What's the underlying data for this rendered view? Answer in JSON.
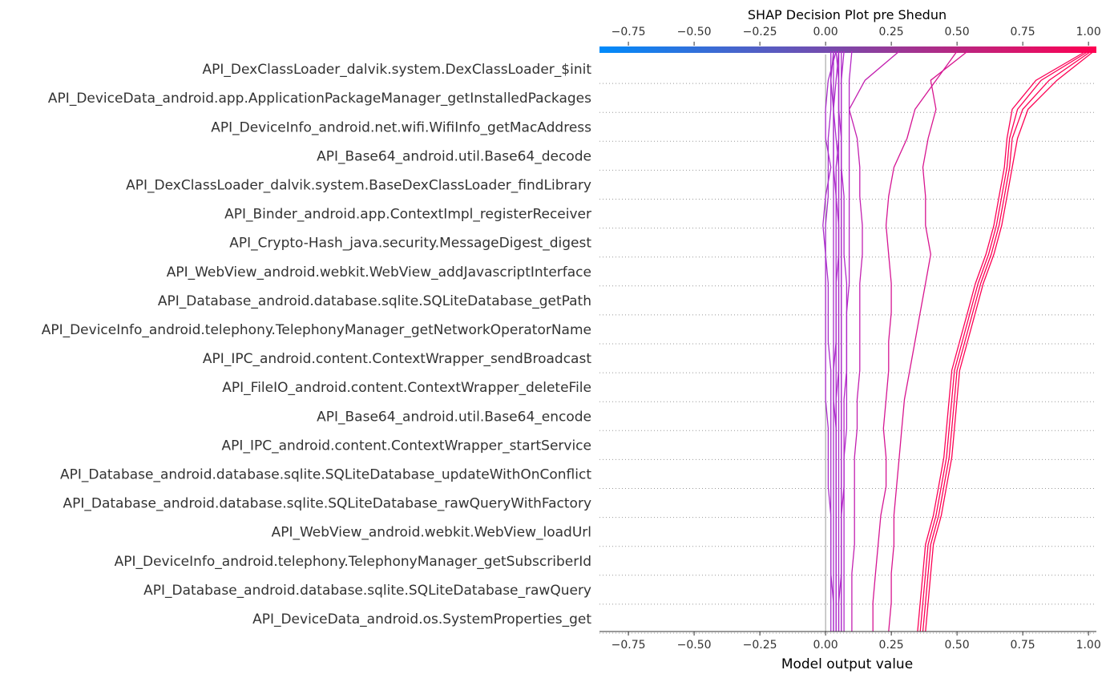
{
  "chart_data": {
    "type": "line",
    "title": "SHAP Decision Plot pre Shedun",
    "xlabel": "Model output value",
    "xlim": [
      -0.86,
      1.03
    ],
    "xticks": [
      -0.75,
      -0.5,
      -0.25,
      0.0,
      0.25,
      0.5,
      0.75,
      1.0
    ],
    "xtick_labels": [
      "−0.75",
      "−0.50",
      "−0.25",
      "0.00",
      "0.25",
      "0.50",
      "0.75",
      "1.00"
    ],
    "base_value": 0.0,
    "grid": "dotted horizontal separators between features",
    "colorbar": {
      "position": "top",
      "from_color": "#008bfb",
      "to_color": "#ff0052"
    },
    "features": [
      "API_DexClassLoader_dalvik.system.DexClassLoader_$init",
      "API_DeviceData_android.app.ApplicationPackageManager_getInstalledPackages",
      "API_DeviceInfo_android.net.wifi.WifiInfo_getMacAddress",
      "API_Base64_android.util.Base64_decode",
      "API_DexClassLoader_dalvik.system.BaseDexClassLoader_findLibrary",
      "API_Binder_android.app.ContextImpl_registerReceiver",
      "API_Crypto-Hash_java.security.MessageDigest_digest",
      "API_WebView_android.webkit.WebView_addJavascriptInterface",
      "API_Database_android.database.sqlite.SQLiteDatabase_getPath",
      "API_DeviceInfo_android.telephony.TelephonyManager_getNetworkOperatorName",
      "API_IPC_android.content.ContextWrapper_sendBroadcast",
      "API_FileIO_android.content.ContextWrapper_deleteFile",
      "API_Base64_android.util.Base64_encode",
      "API_IPC_android.content.ContextWrapper_startService",
      "API_Database_android.database.sqlite.SQLiteDatabase_updateWithOnConflict",
      "API_Database_android.database.sqlite.SQLiteDatabase_rawQueryWithFactory",
      "API_WebView_android.webkit.WebView_loadUrl",
      "API_DeviceInfo_android.telephony.TelephonyManager_getSubscriberId",
      "API_Database_android.database.sqlite.SQLiteDatabase_rawQuery",
      "API_DeviceData_android.os.SystemProperties_get"
    ],
    "series_points_note": "each series lists output values from the bottom (base value) upward to the top (final prediction); 21 points per series",
    "series": [
      {
        "values": [
          0.36,
          0.37,
          0.38,
          0.39,
          0.42,
          0.44,
          0.46,
          0.47,
          0.48,
          0.49,
          0.52,
          0.55,
          0.58,
          0.62,
          0.65,
          0.67,
          0.69,
          0.7,
          0.73,
          0.82,
          1.0
        ]
      },
      {
        "values": [
          0.37,
          0.38,
          0.39,
          0.4,
          0.43,
          0.45,
          0.47,
          0.48,
          0.49,
          0.5,
          0.53,
          0.56,
          0.59,
          0.63,
          0.66,
          0.68,
          0.7,
          0.71,
          0.75,
          0.85,
          1.01
        ]
      },
      {
        "values": [
          0.38,
          0.39,
          0.4,
          0.41,
          0.44,
          0.46,
          0.48,
          0.49,
          0.5,
          0.51,
          0.54,
          0.57,
          0.6,
          0.64,
          0.67,
          0.69,
          0.71,
          0.73,
          0.77,
          0.88,
          1.02
        ]
      },
      {
        "values": [
          0.35,
          0.36,
          0.37,
          0.38,
          0.41,
          0.43,
          0.45,
          0.46,
          0.47,
          0.48,
          0.51,
          0.54,
          0.57,
          0.61,
          0.64,
          0.66,
          0.68,
          0.69,
          0.71,
          0.8,
          0.99
        ]
      },
      {
        "values": [
          0.24,
          0.25,
          0.25,
          0.26,
          0.26,
          0.27,
          0.28,
          0.29,
          0.3,
          0.32,
          0.34,
          0.36,
          0.38,
          0.4,
          0.38,
          0.38,
          0.37,
          0.39,
          0.42,
          0.4,
          0.54
        ]
      },
      {
        "values": [
          0.18,
          0.18,
          0.19,
          0.2,
          0.21,
          0.23,
          0.23,
          0.22,
          0.23,
          0.24,
          0.24,
          0.25,
          0.25,
          0.24,
          0.23,
          0.24,
          0.26,
          0.31,
          0.34,
          0.42,
          0.5
        ]
      },
      {
        "values": [
          0.1,
          0.1,
          0.1,
          0.11,
          0.11,
          0.11,
          0.11,
          0.12,
          0.12,
          0.13,
          0.13,
          0.13,
          0.13,
          0.14,
          0.14,
          0.13,
          0.13,
          0.12,
          0.09,
          0.15,
          0.28
        ]
      },
      {
        "values": [
          0.03,
          0.03,
          0.02,
          0.02,
          0.02,
          0.01,
          0.01,
          0.01,
          0.0,
          0.0,
          0.0,
          0.0,
          0.0,
          0.0,
          -0.01,
          0.0,
          0.02,
          0.0,
          0.0,
          0.01,
          0.04
        ]
      },
      {
        "values": [
          0.06,
          0.06,
          0.06,
          0.06,
          0.06,
          0.07,
          0.07,
          0.07,
          0.07,
          0.08,
          0.08,
          0.08,
          0.09,
          0.09,
          0.09,
          0.09,
          0.09,
          0.09,
          0.09,
          0.09,
          0.1
        ]
      },
      {
        "values": [
          0.04,
          0.04,
          0.04,
          0.04,
          0.04,
          0.04,
          0.04,
          0.04,
          0.03,
          0.03,
          0.04,
          0.04,
          0.04,
          0.05,
          0.05,
          0.04,
          0.03,
          0.03,
          0.03,
          0.04,
          0.05
        ]
      },
      {
        "values": [
          0.07,
          0.07,
          0.07,
          0.07,
          0.07,
          0.07,
          0.07,
          0.08,
          0.08,
          0.08,
          0.08,
          0.08,
          0.08,
          0.07,
          0.07,
          0.07,
          0.06,
          0.06,
          0.06,
          0.06,
          0.07
        ]
      },
      {
        "values": [
          0.05,
          0.05,
          0.05,
          0.05,
          0.05,
          0.05,
          0.05,
          0.05,
          0.05,
          0.05,
          0.05,
          0.05,
          0.05,
          0.05,
          0.05,
          0.05,
          0.05,
          0.04,
          0.03,
          0.02,
          0.03
        ]
      },
      {
        "values": [
          0.02,
          0.02,
          0.02,
          0.02,
          0.02,
          0.02,
          0.02,
          0.02,
          0.02,
          0.02,
          0.01,
          0.01,
          0.01,
          0.0,
          0.0,
          0.01,
          0.01,
          0.01,
          0.02,
          0.02,
          0.02
        ]
      },
      {
        "values": [
          0.05,
          0.05,
          0.06,
          0.06,
          0.06,
          0.06,
          0.06,
          0.06,
          0.06,
          0.06,
          0.06,
          0.06,
          0.06,
          0.06,
          0.06,
          0.06,
          0.06,
          0.06,
          0.06,
          0.06,
          0.06
        ]
      },
      {
        "values": [
          0.03,
          0.03,
          0.03,
          0.03,
          0.03,
          0.03,
          0.03,
          0.03,
          0.03,
          0.03,
          0.03,
          0.03,
          0.03,
          0.03,
          0.03,
          0.03,
          0.03,
          0.03,
          0.03,
          0.03,
          0.03
        ]
      },
      {
        "values": [
          0.04,
          0.04,
          0.04,
          0.04,
          0.04,
          0.04,
          0.04,
          0.04,
          0.04,
          0.04,
          0.04,
          0.04,
          0.04,
          0.04,
          0.04,
          0.04,
          0.04,
          0.05,
          0.05,
          0.05,
          0.04
        ]
      },
      {
        "values": [
          0.06,
          0.06,
          0.06,
          0.06,
          0.06,
          0.06,
          0.06,
          0.06,
          0.06,
          0.06,
          0.06,
          0.06,
          0.06,
          0.06,
          0.06,
          0.06,
          0.06,
          0.06,
          0.05,
          0.05,
          0.05
        ]
      },
      {
        "values": [
          0.04,
          0.04,
          0.04,
          0.04,
          0.04,
          0.04,
          0.04,
          0.04,
          0.04,
          0.05,
          0.05,
          0.05,
          0.05,
          0.05,
          0.05,
          0.05,
          0.05,
          0.05,
          0.05,
          0.05,
          0.05
        ]
      }
    ]
  }
}
